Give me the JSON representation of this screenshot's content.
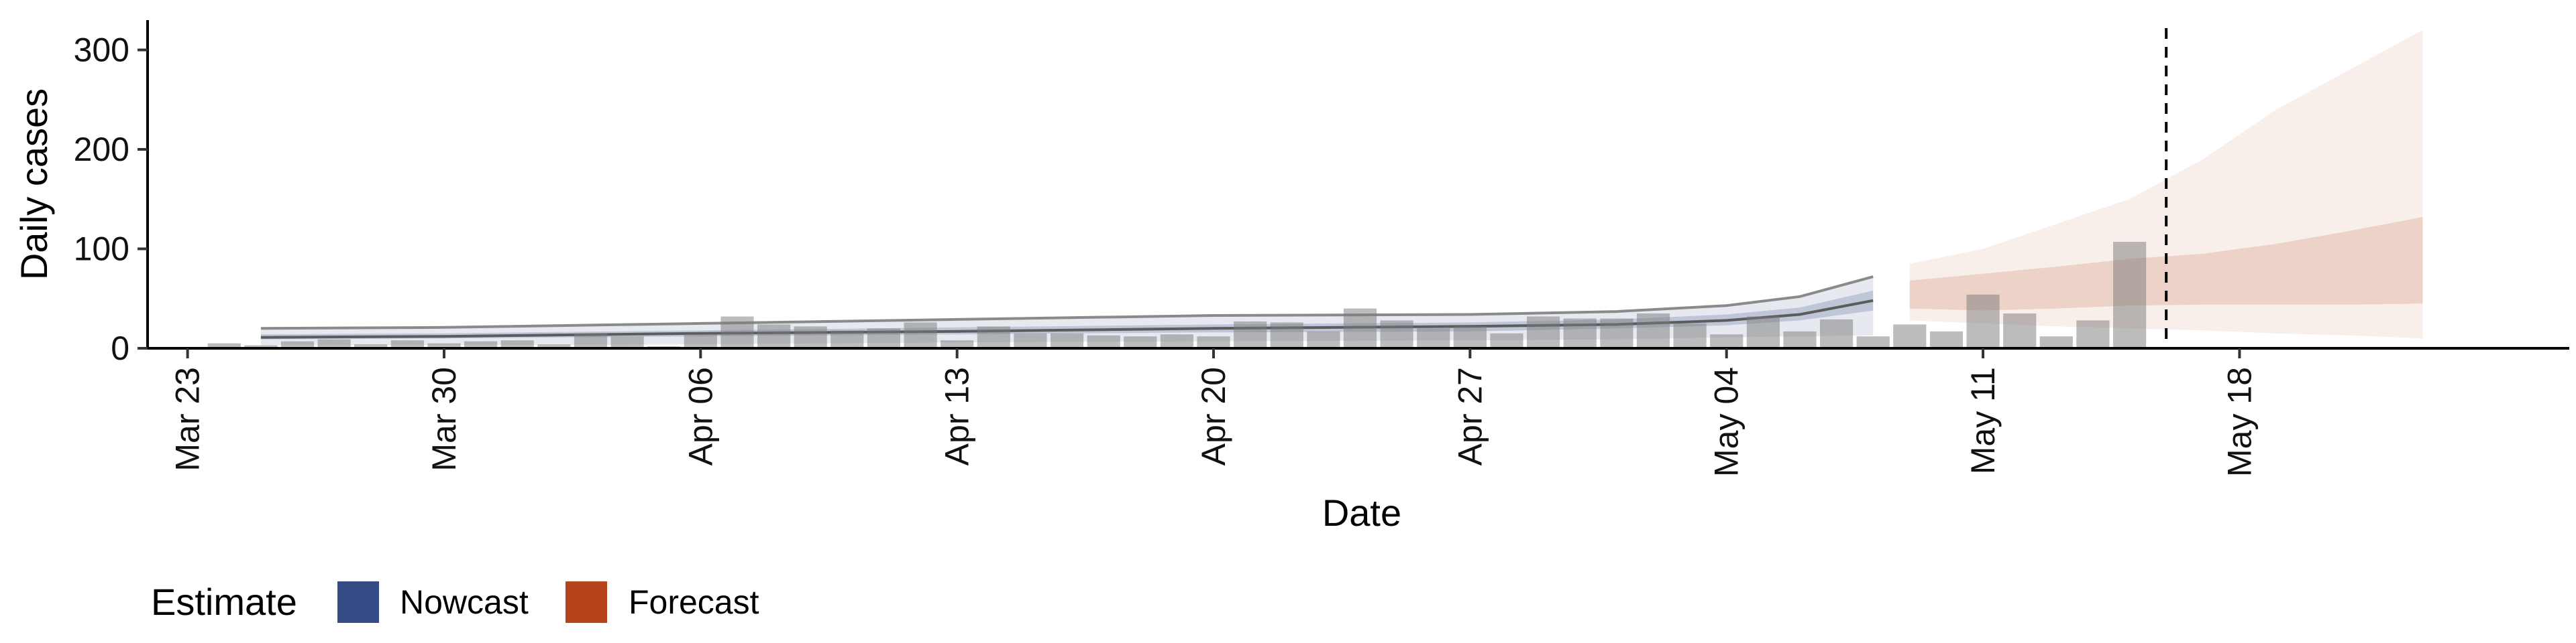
{
  "chart_data": {
    "type": "bar",
    "xlabel": "Date",
    "ylabel": "Daily cases",
    "ylim": [
      0,
      330
    ],
    "xlim": [
      "2020-03-22",
      "2020-05-27"
    ],
    "yticks": [
      0,
      100,
      200,
      300
    ],
    "xticks": [
      {
        "date": "2020-03-23",
        "label": "Mar 23"
      },
      {
        "date": "2020-03-30",
        "label": "Mar 30"
      },
      {
        "date": "2020-04-06",
        "label": "Apr 06"
      },
      {
        "date": "2020-04-13",
        "label": "Apr 13"
      },
      {
        "date": "2020-04-20",
        "label": "Apr 20"
      },
      {
        "date": "2020-04-27",
        "label": "Apr 27"
      },
      {
        "date": "2020-05-04",
        "label": "May 04"
      },
      {
        "date": "2020-05-11",
        "label": "May 11"
      },
      {
        "date": "2020-05-18",
        "label": "May 18"
      }
    ],
    "reference_line": {
      "date": "2020-05-16",
      "style": "dashed"
    },
    "reported_cases": {
      "dates": [
        "2020-03-24",
        "2020-03-25",
        "2020-03-26",
        "2020-03-27",
        "2020-03-28",
        "2020-03-29",
        "2020-03-30",
        "2020-03-31",
        "2020-04-01",
        "2020-04-02",
        "2020-04-03",
        "2020-04-04",
        "2020-04-05",
        "2020-04-06",
        "2020-04-07",
        "2020-04-08",
        "2020-04-09",
        "2020-04-10",
        "2020-04-11",
        "2020-04-12",
        "2020-04-13",
        "2020-04-14",
        "2020-04-15",
        "2020-04-16",
        "2020-04-17",
        "2020-04-18",
        "2020-04-19",
        "2020-04-20",
        "2020-04-21",
        "2020-04-22",
        "2020-04-23",
        "2020-04-24",
        "2020-04-25",
        "2020-04-26",
        "2020-04-27",
        "2020-04-28",
        "2020-04-29",
        "2020-04-30",
        "2020-05-01",
        "2020-05-02",
        "2020-05-03",
        "2020-05-04",
        "2020-05-05",
        "2020-05-06",
        "2020-05-07",
        "2020-05-08",
        "2020-05-09",
        "2020-05-10",
        "2020-05-11",
        "2020-05-12",
        "2020-05-13",
        "2020-05-14",
        "2020-05-15",
        "2020-05-16"
      ],
      "values": [
        5,
        3,
        7,
        9,
        4,
        8,
        5,
        7,
        8,
        4,
        15,
        12,
        2,
        14,
        32,
        24,
        22,
        18,
        20,
        26,
        8,
        22,
        15,
        15,
        13,
        12,
        14,
        12,
        27,
        26,
        17,
        40,
        28,
        20,
        22,
        15,
        32,
        30,
        30,
        35,
        25,
        14,
        32,
        17,
        29,
        12,
        24,
        17,
        54,
        35,
        12,
        28,
        107,
        0
      ]
    },
    "series": [
      {
        "name": "Nowcast",
        "color": "#344b85",
        "dates": [
          "2020-03-25",
          "2020-03-30",
          "2020-04-06",
          "2020-04-13",
          "2020-04-20",
          "2020-04-27",
          "2020-05-01",
          "2020-05-04",
          "2020-05-06",
          "2020-05-08"
        ],
        "outer_upper": [
          20,
          21,
          25,
          29,
          33,
          34,
          37,
          43,
          52,
          72
        ],
        "outer_lower": [
          3,
          3,
          4,
          6,
          7,
          8,
          9,
          11,
          12,
          13
        ],
        "inner_upper": [
          14,
          15,
          18,
          21,
          24,
          26,
          29,
          34,
          41,
          58
        ],
        "inner_lower": [
          9,
          10,
          12,
          14,
          16,
          17,
          20,
          23,
          28,
          38
        ],
        "median": [
          11,
          12,
          15,
          17,
          20,
          22,
          24,
          28,
          34,
          48
        ]
      },
      {
        "name": "Forecast",
        "color": "#b5441a",
        "dates": [
          "2020-05-09",
          "2020-05-11",
          "2020-05-13",
          "2020-05-15",
          "2020-05-17",
          "2020-05-19",
          "2020-05-21",
          "2020-05-23"
        ],
        "outer_upper": [
          85,
          100,
          125,
          150,
          190,
          240,
          280,
          320
        ],
        "outer_lower": [
          28,
          25,
          22,
          20,
          18,
          15,
          13,
          10
        ],
        "inner_upper": [
          68,
          75,
          82,
          90,
          95,
          105,
          118,
          132
        ],
        "inner_lower": [
          40,
          38,
          40,
          43,
          44,
          44,
          44,
          45
        ]
      }
    ],
    "legend": {
      "title": "Estimate",
      "position": "bottom-left"
    }
  }
}
